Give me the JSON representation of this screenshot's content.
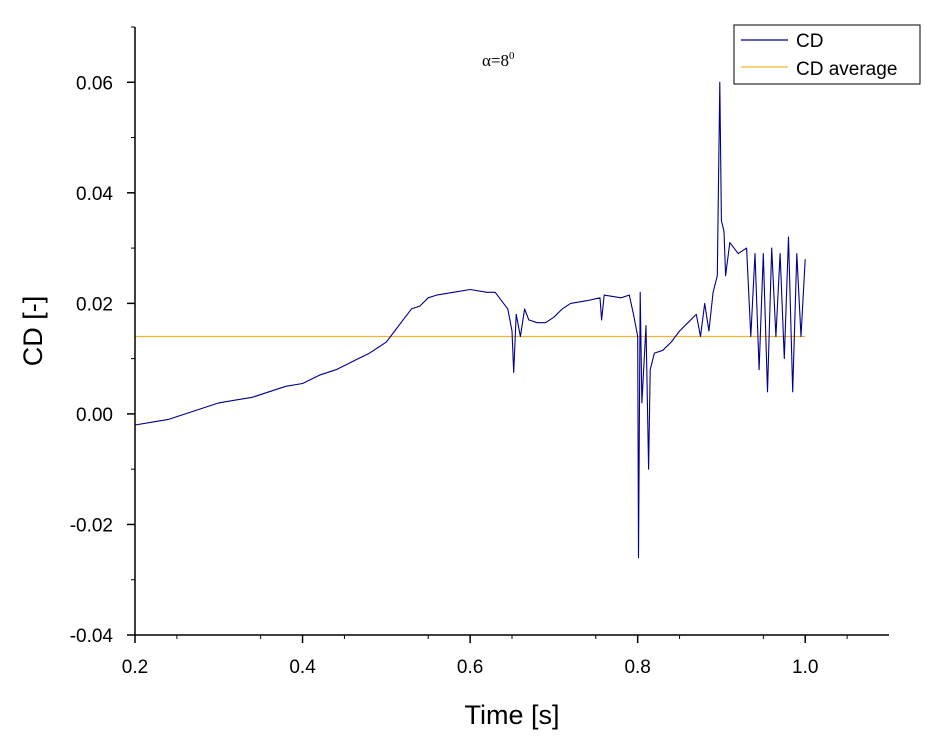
{
  "chart_data": {
    "type": "line",
    "xlabel": "Time [s]",
    "ylabel": "CD [-]",
    "xlim": [
      0.2,
      1.1
    ],
    "ylim": [
      -0.04,
      0.07
    ],
    "x_ticks": [
      "0.2",
      "0.4",
      "0.6",
      "0.8",
      "1.0"
    ],
    "y_ticks": [
      "-0.04",
      "-0.02",
      "0.00",
      "0.02",
      "0.04",
      "0.06"
    ],
    "x_tick_values": [
      0.2,
      0.4,
      0.6,
      0.8,
      1.0
    ],
    "y_tick_values": [
      -0.04,
      -0.02,
      0.0,
      0.02,
      0.04,
      0.06
    ],
    "grid": false,
    "legend_position": "top-right",
    "annotation": {
      "base": "α=8",
      "sup": "0"
    },
    "series": [
      {
        "name": "CD",
        "color": "#00008B",
        "x": [
          0.2,
          0.22,
          0.24,
          0.26,
          0.28,
          0.3,
          0.32,
          0.34,
          0.36,
          0.38,
          0.4,
          0.42,
          0.44,
          0.46,
          0.48,
          0.5,
          0.51,
          0.52,
          0.53,
          0.54,
          0.55,
          0.56,
          0.58,
          0.6,
          0.62,
          0.63,
          0.64,
          0.645,
          0.65,
          0.652,
          0.655,
          0.66,
          0.665,
          0.67,
          0.68,
          0.69,
          0.7,
          0.71,
          0.72,
          0.74,
          0.755,
          0.757,
          0.76,
          0.78,
          0.79,
          0.795,
          0.8,
          0.801,
          0.803,
          0.805,
          0.81,
          0.813,
          0.815,
          0.82,
          0.83,
          0.84,
          0.85,
          0.86,
          0.87,
          0.875,
          0.88,
          0.885,
          0.89,
          0.895,
          0.898,
          0.9,
          0.903,
          0.905,
          0.91,
          0.92,
          0.93,
          0.935,
          0.94,
          0.945,
          0.95,
          0.955,
          0.96,
          0.965,
          0.97,
          0.975,
          0.98,
          0.985,
          0.99,
          0.995,
          1.0
        ],
        "y": [
          -0.002,
          -0.0015,
          -0.001,
          0.0,
          0.001,
          0.002,
          0.0025,
          0.003,
          0.004,
          0.005,
          0.0055,
          0.007,
          0.008,
          0.0095,
          0.011,
          0.013,
          0.015,
          0.017,
          0.019,
          0.0195,
          0.021,
          0.0215,
          0.022,
          0.0225,
          0.022,
          0.022,
          0.02,
          0.019,
          0.015,
          0.0075,
          0.018,
          0.014,
          0.019,
          0.017,
          0.0165,
          0.0165,
          0.0175,
          0.019,
          0.02,
          0.0205,
          0.021,
          0.017,
          0.0215,
          0.021,
          0.0215,
          0.018,
          0.014,
          -0.026,
          0.022,
          0.002,
          0.016,
          -0.01,
          0.008,
          0.011,
          0.0115,
          0.013,
          0.015,
          0.0165,
          0.018,
          0.014,
          0.02,
          0.015,
          0.022,
          0.025,
          0.06,
          0.035,
          0.033,
          0.025,
          0.031,
          0.029,
          0.03,
          0.014,
          0.029,
          0.008,
          0.029,
          0.004,
          0.03,
          0.014,
          0.029,
          0.01,
          0.032,
          0.004,
          0.029,
          0.014,
          0.028
        ]
      },
      {
        "name": "CD average",
        "color": "#F2B233",
        "x": [
          0.2,
          1.0
        ],
        "y": [
          0.014,
          0.014
        ]
      }
    ]
  }
}
